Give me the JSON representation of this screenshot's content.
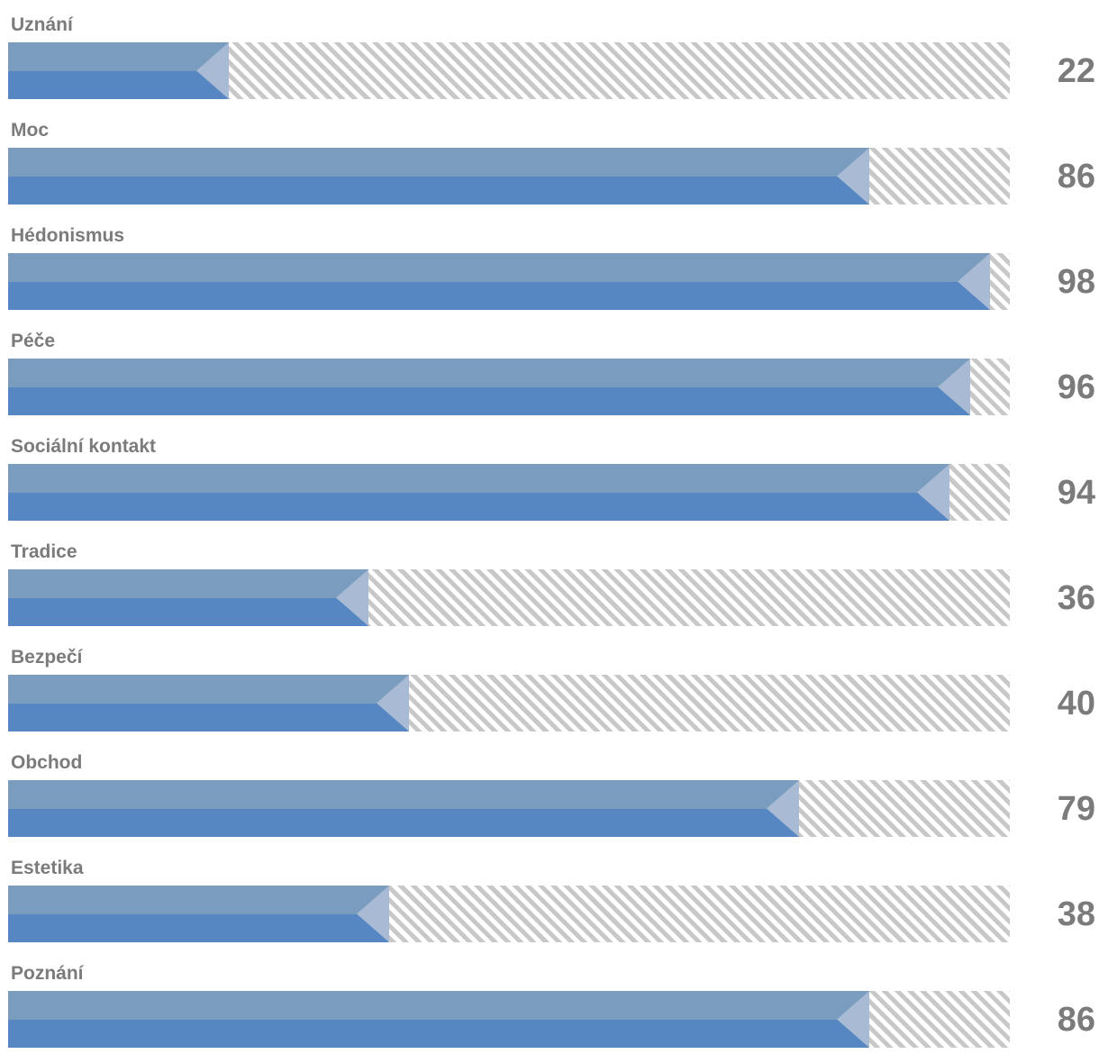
{
  "chart_data": {
    "type": "bar",
    "orientation": "horizontal",
    "categories": [
      "Uznání",
      "Moc",
      "Hédonismus",
      "Péče",
      "Sociální kontakt",
      "Tradice",
      "Bezpečí",
      "Obchod",
      "Estetika",
      "Poznání"
    ],
    "values": [
      22,
      86,
      98,
      96,
      94,
      36,
      40,
      79,
      38,
      86
    ],
    "value_labels": [
      "22",
      "86",
      "98",
      "96",
      "94",
      "36",
      "40",
      "79",
      "38",
      "86"
    ],
    "title": "",
    "xlabel": "",
    "ylabel": "",
    "xlim": [
      0,
      100
    ],
    "grid": false,
    "legend": "none",
    "colors": {
      "fill_top": "#7a9cbf",
      "fill_bottom": "#5787c3",
      "cap": "#a8bad4",
      "track_stripe": "#c8c8c8",
      "text": "#7b7b7b"
    }
  }
}
